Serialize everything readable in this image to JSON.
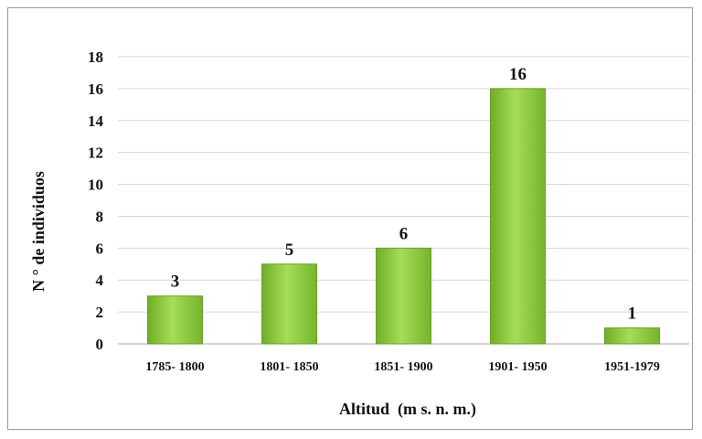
{
  "chart_data": {
    "type": "bar",
    "categories": [
      "1785- 1800",
      "1801- 1850",
      "1851- 1900",
      "1901- 1950",
      "1951-1979"
    ],
    "values": [
      3,
      5,
      6,
      16,
      1
    ],
    "xlabel": "Altitud  (m s. n. m.)",
    "ylabel": "N ° de individuos",
    "ylim": [
      0,
      18
    ],
    "yticks": [
      0,
      2,
      4,
      6,
      8,
      10,
      12,
      14,
      16,
      18
    ],
    "grid": true,
    "bar_color": "#8cc83c",
    "bar_edge_color": "#6a9e28"
  }
}
